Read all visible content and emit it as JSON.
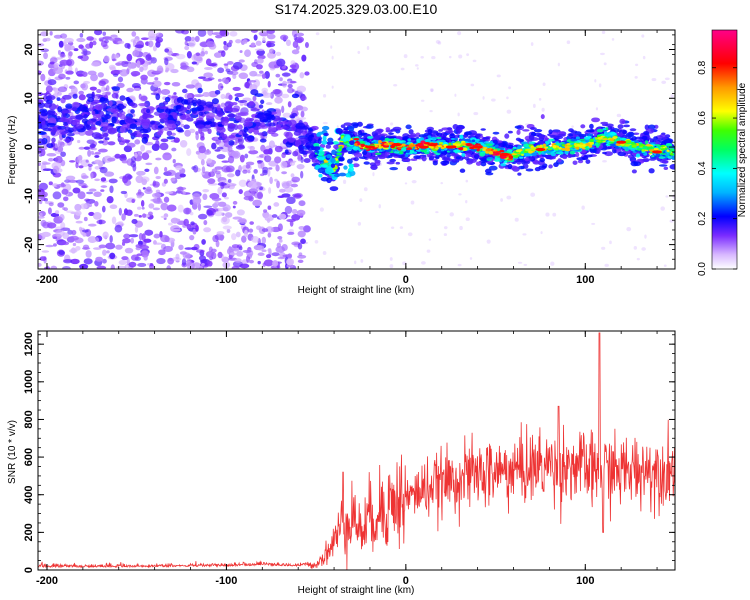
{
  "title": "S174.2025.329.03.00.E10",
  "chart_data": [
    {
      "type": "heatmap",
      "xlabel": "Height of straight line (km)",
      "ylabel": "Frequency (Hz)",
      "xlim": [
        -205,
        150
      ],
      "ylim": [
        -25,
        24
      ],
      "x_ticks": [
        -200,
        -100,
        0,
        100
      ],
      "x_tick_labels": [
        "-200",
        "-100",
        "0",
        "100"
      ],
      "y_ticks": [
        -20,
        -10,
        0,
        10,
        20
      ],
      "y_tick_labels": [
        "-20",
        "-10",
        "0",
        "10",
        "20"
      ],
      "colorbar": {
        "label": "Normalized spectral amplitude",
        "range": [
          0,
          0.95
        ],
        "ticks": [
          0.0,
          0.2,
          0.4,
          0.6,
          0.8
        ],
        "tick_labels": [
          "0.0",
          "0.2",
          "0.4",
          "0.6",
          "0.8"
        ],
        "colors": [
          "#ffffff",
          "#9b59ff",
          "#0000ff",
          "#00ffff",
          "#00ff00",
          "#ffff00",
          "#ff8800",
          "#ff0000",
          "#ff0088"
        ]
      },
      "ridge": {
        "x": [
          -140,
          -120,
          -100,
          -90,
          -80,
          -60,
          -50,
          -45,
          -40,
          -35,
          -30,
          -20,
          -10,
          0,
          10,
          20,
          30,
          40,
          50,
          55,
          60,
          70,
          80,
          90,
          100,
          110,
          120,
          130,
          140,
          150
        ],
        "y": [
          6,
          7.5,
          6,
          4,
          6,
          3,
          0,
          -3,
          -5,
          2,
          1,
          0,
          0.5,
          0,
          0.5,
          0,
          0.3,
          0,
          -1,
          -2,
          -1.5,
          -0.5,
          0,
          0,
          0.5,
          2,
          1,
          0,
          -0.5,
          -1
        ]
      },
      "grid": false
    },
    {
      "type": "line",
      "xlabel": "Height of straight line (km)",
      "ylabel": "SNR (10 * v/v)",
      "xlim": [
        -205,
        150
      ],
      "ylim": [
        0,
        1270
      ],
      "x_ticks": [
        -200,
        -100,
        0,
        100
      ],
      "x_tick_labels": [
        "-200",
        "-100",
        "0",
        "100"
      ],
      "y_ticks": [
        0,
        200,
        400,
        600,
        800,
        1000,
        1200
      ],
      "y_tick_labels": [
        "0",
        "200",
        "400",
        "600",
        "800",
        "1000",
        "1200"
      ],
      "line_color": "#ee3333",
      "series_envelope": {
        "x": [
          -205,
          -150,
          -100,
          -80,
          -60,
          -50,
          -45,
          -40,
          -35,
          -30,
          -25,
          -20,
          -10,
          0,
          10,
          20,
          30,
          40,
          50,
          60,
          70,
          80,
          90,
          100,
          105,
          110,
          115,
          120,
          130,
          140,
          150
        ],
        "y": [
          15,
          15,
          20,
          25,
          20,
          30,
          80,
          150,
          250,
          300,
          200,
          280,
          350,
          380,
          430,
          460,
          490,
          510,
          520,
          530,
          545,
          560,
          560,
          540,
          520,
          540,
          530,
          520,
          540,
          530,
          540
        ]
      },
      "spikes": [
        {
          "x": -35,
          "y": 520
        },
        {
          "x": 85,
          "y": 870
        },
        {
          "x": 108,
          "y": 1260
        },
        {
          "x": 110,
          "y": 200
        }
      ],
      "grid": false
    }
  ]
}
